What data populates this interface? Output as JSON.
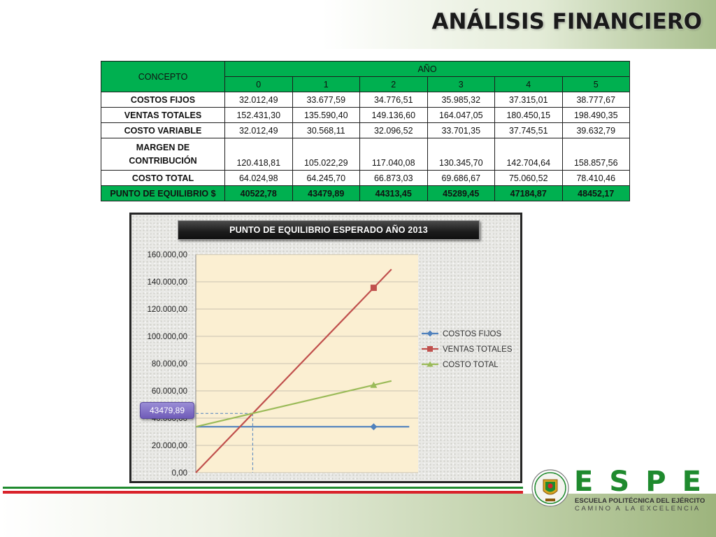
{
  "slide": {
    "title": "ANÁLISIS FINANCIERO"
  },
  "table": {
    "concept_header": "CONCEPTO",
    "year_header": "AÑO",
    "years": [
      "0",
      "1",
      "2",
      "3",
      "4",
      "5"
    ],
    "rows": [
      {
        "label": "COSTOS FIJOS",
        "values": [
          "32.012,49",
          "33.677,59",
          "34.776,51",
          "35.985,32",
          "37.315,01",
          "38.777,67"
        ]
      },
      {
        "label": "VENTAS TOTALES",
        "values": [
          "152.431,30",
          "135.590,40",
          "149.136,60",
          "164.047,05",
          "180.450,15",
          "198.490,35"
        ]
      },
      {
        "label": "COSTO VARIABLE",
        "values": [
          "32.012,49",
          "30.568,11",
          "32.096,52",
          "33.701,35",
          "37.745,51",
          "39.632,79"
        ]
      },
      {
        "label_line1": "MARGEN DE",
        "label_line2": "CONTRIBUCIÓN",
        "values": [
          "120.418,81",
          "105.022,29",
          "117.040,08",
          "130.345,70",
          "142.704,64",
          "158.857,56"
        ]
      },
      {
        "label": "COSTO TOTAL",
        "values": [
          "64.024,98",
          "64.245,70",
          "66.873,03",
          "69.686,67",
          "75.060,52",
          "78.410,46"
        ]
      },
      {
        "label": "PUNTO DE EQUILIBRIO $",
        "values": [
          "40522,78",
          "43479,89",
          "44313,45",
          "45289,45",
          "47184,87",
          "48452,17"
        ]
      }
    ]
  },
  "chart_data": {
    "type": "line",
    "title": "PUNTO DE EQUILIBRIO ESPERADO AÑO 2013",
    "xlabel": "",
    "ylabel": "",
    "ylim": [
      0,
      160000
    ],
    "y_ticks": [
      "0,00",
      "20.000,00",
      "40.000,00",
      "60.000,00",
      "80.000,00",
      "100.000,00",
      "120.000,00",
      "140.000,00",
      "160.000,00"
    ],
    "y_tick_values": [
      0,
      20000,
      40000,
      60000,
      80000,
      100000,
      120000,
      140000,
      160000
    ],
    "xlim": [
      0,
      1.25
    ],
    "series": [
      {
        "name": "COSTOS FIJOS",
        "color": "#4f81bd",
        "marker": "diamond",
        "x": [
          0,
          1,
          1.2
        ],
        "y": [
          33677.59,
          33677.59,
          33677.59
        ],
        "marker_points": [
          [
            1,
            33677.59
          ]
        ]
      },
      {
        "name": "VENTAS TOTALES",
        "color": "#c0504d",
        "marker": "square",
        "x": [
          0,
          1,
          1.1
        ],
        "y": [
          0,
          135590.4,
          149149.44
        ],
        "marker_points": [
          [
            1,
            135590.4
          ]
        ]
      },
      {
        "name": "COSTO TOTAL",
        "color": "#9bbb59",
        "marker": "triangle",
        "x": [
          0,
          1,
          1.1
        ],
        "y": [
          33677.59,
          64245.7,
          67302.51
        ],
        "marker_points": [
          [
            1,
            64245.7
          ]
        ]
      }
    ],
    "break_even": {
      "x": 0.32,
      "y": 43479.89,
      "label": "43479,89"
    },
    "legend_position": "right",
    "grid": true
  },
  "logo": {
    "letters": [
      "E",
      "S",
      "P",
      "E"
    ],
    "letter_colors": [
      "#1f8a2e",
      "#1f8a2e",
      "#1f8a2e",
      "#1f8a2e"
    ],
    "school_name": "ESCUELA POLITÉCNICA DEL EJÉRCITO",
    "motto": "CAMINO A LA EXCELENCIA"
  }
}
